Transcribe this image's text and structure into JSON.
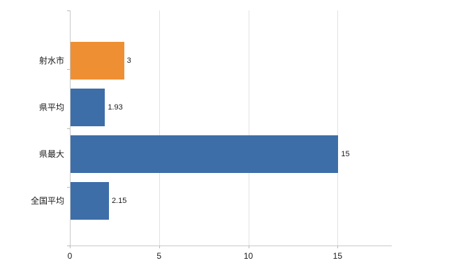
{
  "chart_data": {
    "type": "bar",
    "orientation": "horizontal",
    "title": "",
    "xlabel": "",
    "ylabel": "",
    "categories": [
      "射水市",
      "県平均",
      "県最大",
      "全国平均"
    ],
    "values": [
      3,
      1.93,
      15,
      2.15
    ],
    "value_labels": [
      "3",
      "1.93",
      "15",
      "2.15"
    ],
    "bar_colors": [
      "#ee8f33",
      "#3d6ea8",
      "#3d6ea8",
      "#3d6ea8"
    ],
    "xlim": [
      0,
      18
    ],
    "xticks": [
      0,
      5,
      10,
      15
    ],
    "xtick_labels": [
      "0",
      "5",
      "10",
      "15"
    ],
    "grid": "vertical",
    "legend": "none",
    "colors": {
      "highlight_bar": "#ee8f33",
      "default_bar": "#3d6ea8",
      "axis": "#c9c9c9",
      "gridline": "#e2e2e2",
      "text": "#1a1a1a",
      "background": "#ffffff"
    }
  }
}
